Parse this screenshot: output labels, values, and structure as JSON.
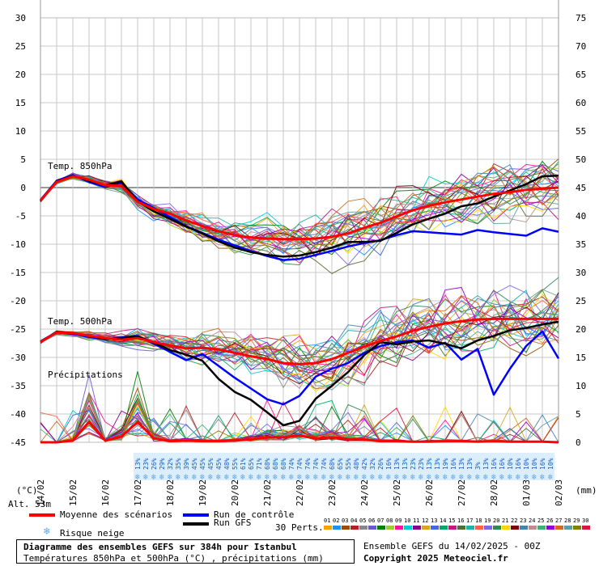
{
  "chart_data": {
    "type": "line",
    "title": "Diagramme des ensembles GEFS sur 384h pour Istanbul",
    "subtitle": "Températures 850hPa et 500hPa (°C) , précipitations (mm)",
    "left_axis": {
      "unit_label": "(°C)",
      "ylim": [
        -45,
        30
      ],
      "ticks": [
        30,
        25,
        20,
        15,
        10,
        5,
        0,
        -5,
        -10,
        -15,
        -20,
        -25,
        -30,
        -35,
        -40,
        -45
      ]
    },
    "right_axis": {
      "unit_label": "(mm)",
      "ylim": [
        0,
        75
      ],
      "ticks": [
        75,
        70,
        65,
        60,
        55,
        50,
        45,
        40,
        35,
        30,
        25,
        20,
        15,
        10,
        5,
        0
      ]
    },
    "x_dates": [
      "14/02",
      "15/02",
      "16/02",
      "17/02",
      "18/02",
      "19/02",
      "20/02",
      "21/02",
      "22/02",
      "23/02",
      "24/02",
      "25/02",
      "26/02",
      "27/02",
      "28/02",
      "01/03",
      "02/03"
    ],
    "x_range_hours": [
      0,
      384
    ],
    "section_labels": {
      "t850": "Temp. 850hPa",
      "t500": "Temp. 500hPa",
      "precip": "Précipitations"
    },
    "altitude_label": "Alt. 53m",
    "series": [
      {
        "name": "Moyenne des scénarios",
        "variable": "T850",
        "color": "#ff0000",
        "x": [
          0,
          12,
          24,
          36,
          48,
          60,
          72,
          84,
          96,
          108,
          120,
          132,
          144,
          156,
          168,
          180,
          192,
          204,
          216,
          228,
          240,
          252,
          264,
          276,
          288,
          300,
          312,
          324,
          336,
          348,
          360,
          372,
          384
        ],
        "values": [
          -2.3,
          1.0,
          2.0,
          1.4,
          0.4,
          0.3,
          -2.5,
          -3.8,
          -4.6,
          -5.8,
          -6.8,
          -7.7,
          -8.4,
          -8.8,
          -9.0,
          -9.1,
          -9.1,
          -9.0,
          -8.7,
          -8.1,
          -7.1,
          -6.2,
          -5.1,
          -4.0,
          -3.2,
          -2.6,
          -2.1,
          -1.6,
          -1.1,
          -0.8,
          -0.4,
          -0.2,
          0.0
        ]
      },
      {
        "name": "Moyenne des scénarios",
        "variable": "T500",
        "color": "#ff0000",
        "x": [
          0,
          12,
          24,
          36,
          48,
          60,
          72,
          84,
          96,
          108,
          120,
          132,
          144,
          156,
          168,
          180,
          192,
          204,
          216,
          228,
          240,
          252,
          264,
          276,
          288,
          300,
          312,
          324,
          336,
          348,
          360,
          372,
          384
        ],
        "values": [
          -27.3,
          -25.6,
          -25.7,
          -26.2,
          -26.6,
          -26.9,
          -26.6,
          -27.3,
          -27.9,
          -28.4,
          -28.3,
          -28.6,
          -29.2,
          -29.8,
          -30.3,
          -31.0,
          -31.2,
          -31.0,
          -30.3,
          -29.2,
          -28.1,
          -27.1,
          -26.3,
          -25.3,
          -24.6,
          -24.0,
          -23.6,
          -23.3,
          -23.2,
          -23.2,
          -23.2,
          -23.2,
          -23.2
        ]
      },
      {
        "name": "Run de contrôle",
        "variable": "T850",
        "color": "#0000ff",
        "x": [
          0,
          12,
          24,
          36,
          48,
          60,
          72,
          84,
          96,
          108,
          120,
          132,
          144,
          156,
          168,
          180,
          192,
          204,
          216,
          228,
          240,
          252,
          264,
          276,
          288,
          300,
          312,
          324,
          336,
          348,
          360,
          372,
          384
        ],
        "values": [
          -2.2,
          1.2,
          2.2,
          1.0,
          0.1,
          0.9,
          -2.1,
          -3.6,
          -5.2,
          -6.8,
          -8.0,
          -9.2,
          -10.2,
          -11.2,
          -12.1,
          -12.8,
          -12.6,
          -11.9,
          -11.2,
          -10.4,
          -9.8,
          -9.3,
          -8.4,
          -7.7,
          -7.9,
          -8.1,
          -8.3,
          -7.5,
          -7.9,
          -8.2,
          -8.5,
          -7.2,
          -7.8
        ]
      },
      {
        "name": "Run de contrôle",
        "variable": "T500",
        "color": "#0000ff",
        "x": [
          0,
          12,
          24,
          36,
          48,
          60,
          72,
          84,
          96,
          108,
          120,
          132,
          144,
          156,
          168,
          180,
          192,
          204,
          216,
          228,
          240,
          252,
          264,
          276,
          288,
          300,
          312,
          324,
          336,
          348,
          360,
          372,
          384
        ],
        "values": [
          -27.2,
          -25.5,
          -25.8,
          -26.4,
          -26.8,
          -26.5,
          -26.2,
          -27.6,
          -29.0,
          -30.5,
          -29.4,
          -31.5,
          -33.6,
          -35.5,
          -37.4,
          -38.3,
          -36.8,
          -33.4,
          -32.0,
          -31.0,
          -29.2,
          -28.0,
          -27.3,
          -27.0,
          -28.3,
          -27.4,
          -30.4,
          -28.5,
          -36.6,
          -32.0,
          -28.0,
          -25.4,
          -30.2
        ]
      },
      {
        "name": "Run GFS",
        "variable": "T850",
        "color": "#000000",
        "x": [
          0,
          12,
          24,
          36,
          48,
          60,
          72,
          84,
          96,
          108,
          120,
          132,
          144,
          156,
          168,
          180,
          192,
          204,
          216,
          228,
          240,
          252,
          264,
          276,
          288,
          300,
          312,
          324,
          336,
          348,
          360,
          372,
          384
        ],
        "values": [
          -2.4,
          1.1,
          2.1,
          1.2,
          0.4,
          1.1,
          -2.4,
          -4.2,
          -5.5,
          -6.9,
          -8.1,
          -9.5,
          -10.6,
          -11.4,
          -11.9,
          -12.2,
          -12.0,
          -11.4,
          -10.6,
          -9.6,
          -9.6,
          -9.4,
          -8.0,
          -6.5,
          -5.5,
          -4.6,
          -3.3,
          -2.8,
          -1.6,
          -0.5,
          0.6,
          2.0,
          2.1
        ]
      },
      {
        "name": "Run GFS",
        "variable": "T500",
        "color": "#000000",
        "x": [
          0,
          12,
          24,
          36,
          48,
          60,
          72,
          84,
          96,
          108,
          120,
          132,
          144,
          156,
          168,
          180,
          192,
          204,
          216,
          228,
          240,
          252,
          264,
          276,
          288,
          300,
          312,
          324,
          336,
          348,
          360,
          372,
          384
        ],
        "values": [
          -27.3,
          -25.5,
          -25.7,
          -26.2,
          -26.8,
          -26.6,
          -26.3,
          -27.4,
          -28.7,
          -29.5,
          -30.6,
          -33.8,
          -36.1,
          -37.5,
          -39.7,
          -42.0,
          -41.2,
          -37.3,
          -35.0,
          -32.6,
          -29.6,
          -27.3,
          -27.7,
          -27.2,
          -27.0,
          -27.6,
          -28.4,
          -27.0,
          -26.2,
          -25.2,
          -24.8,
          -24.2,
          -23.7
        ]
      },
      {
        "name": "Moyenne des scénarios",
        "variable": "Précipitations",
        "unit": "mm",
        "color": "#ff0000",
        "x": [
          0,
          12,
          24,
          36,
          48,
          60,
          72,
          84,
          96,
          108,
          120,
          132,
          144,
          156,
          168,
          180,
          192,
          204,
          216,
          228,
          240,
          252,
          264,
          276,
          288,
          300,
          312,
          324,
          336,
          348,
          360,
          372,
          384
        ],
        "values": [
          0,
          0,
          0.3,
          3.6,
          0.3,
          1.0,
          3.6,
          0.7,
          0.2,
          0.3,
          0.2,
          0.2,
          0.3,
          0.5,
          0.9,
          0.9,
          1.2,
          0.7,
          0.9,
          0.6,
          0.5,
          0.2,
          0.2,
          0.1,
          0.1,
          0.2,
          0.2,
          0.1,
          0.2,
          0.1,
          0.1,
          0.1,
          0
        ]
      }
    ],
    "ensemble_members": {
      "count_label": "30 Perts.",
      "labels": [
        "01",
        "02",
        "03",
        "04",
        "05",
        "06",
        "07",
        "08",
        "09",
        "10",
        "11",
        "12",
        "13",
        "14",
        "15",
        "16",
        "17",
        "18",
        "19",
        "20",
        "21",
        "22",
        "23",
        "24",
        "25",
        "26",
        "27",
        "28",
        "29",
        "30"
      ]
    },
    "snow_risk": {
      "label": "Risque neige",
      "x": [
        72,
        78,
        84,
        90,
        96,
        102,
        108,
        114,
        120,
        126,
        132,
        138,
        144,
        150,
        156,
        162,
        168,
        174,
        180,
        186,
        192,
        198,
        204,
        210,
        216,
        222,
        228,
        234,
        240,
        246,
        252,
        258,
        264,
        270,
        276,
        282,
        288,
        294,
        300,
        306,
        312,
        318,
        324,
        330,
        336,
        342,
        348,
        354,
        360,
        366,
        372,
        378
      ],
      "percent": [
        "13%",
        "23%",
        "26%",
        "29%",
        "32%",
        "35%",
        "39%",
        "45%",
        "45%",
        "45%",
        "45%",
        "48%",
        "55%",
        "61%",
        "65%",
        "71%",
        "68%",
        "68%",
        "68%",
        "74%",
        "74%",
        "74%",
        "74%",
        "74%",
        "68%",
        "65%",
        "55%",
        "48%",
        "42%",
        "32%",
        "26%",
        "16%",
        "13%",
        "13%",
        "23%",
        "23%",
        "13%",
        "13%",
        "19%",
        "16%",
        "13%",
        "13%",
        "3%",
        "13%",
        "16%",
        "16%",
        "10%",
        "16%",
        "10%",
        "10%",
        "16%",
        "10%"
      ]
    }
  },
  "legend": {
    "mean_label": "Moyenne des scénarios",
    "control_label": "Run de contrôle",
    "gfs_label": "Run GFS",
    "snow_label": "Risque neige",
    "members_label": "30 Perts.",
    "colors": {
      "mean": "#ff0000",
      "control": "#0000ff",
      "gfs": "#000000",
      "snow": "#55aaee"
    }
  },
  "footer": {
    "title": "Diagramme des ensembles GEFS sur 384h pour Istanbul",
    "subtitle": "Températures 850hPa et 500hPa (°C) , précipitations (mm)",
    "run_info": "Ensemble GEFS du 14/02/2025 - 00Z",
    "copyright": "Copyright 2025 Meteociel.fr"
  },
  "member_colors": [
    "#ff9f00",
    "#1e90ff",
    "#a04a00",
    "#b22222",
    "#888888",
    "#6a5acd",
    "#008000",
    "#9acd32",
    "#ff1493",
    "#00ced1",
    "#8b008b",
    "#daa520",
    "#4169e1",
    "#00aa66",
    "#c71585",
    "#556b2f",
    "#20b2aa",
    "#ff6347",
    "#7b68ee",
    "#2e8b57",
    "#ffd700",
    "#800000",
    "#4682b4",
    "#bc8f8f",
    "#3cb371",
    "#9400d3",
    "#d2691e",
    "#5f9ea0",
    "#808000",
    "#dc143c"
  ]
}
